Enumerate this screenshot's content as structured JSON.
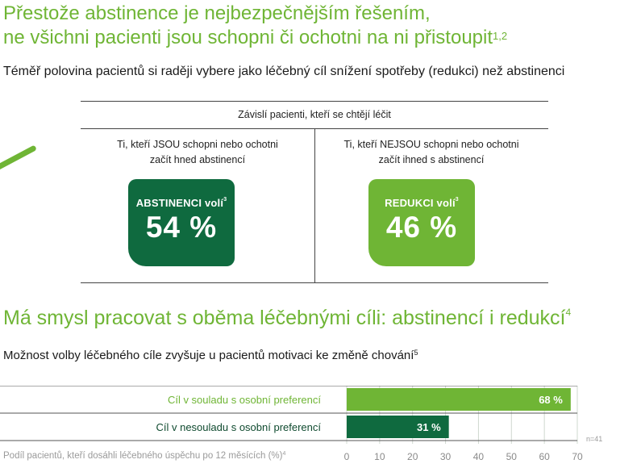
{
  "title": {
    "line1": "Přestože abstinence je nejbezpečnějším řešením,",
    "line2": "ne všichni pacienti jsou schopni či ochotni na ni přistoupit",
    "sup": "1,2"
  },
  "subtitle1": "Téměř polovina pacientů si raději vybere jako léčebný cíl snížení spotřeby (redukci) než abstinenci",
  "table": {
    "header": "Závislí pacienti, kteří se chtějí léčit",
    "left": {
      "line1": "Ti, kteří JSOU schopni nebo ochotni",
      "line2": "začít hned abstinencí",
      "box_label": "ABSTINENCI volí",
      "box_sup": "3",
      "box_value": "54 %"
    },
    "right": {
      "line1": "Ti, kteří NEJSOU schopni nebo ochotni",
      "line2": "začít ihned s abstinencí",
      "box_label": "REDUKCI volí",
      "box_sup": "3",
      "box_value": "46 %"
    }
  },
  "heading2": {
    "text": "Má smysl pracovat s oběma léčebnými cíli: abstinencí i redukcí",
    "sup": "4"
  },
  "subtitle2": {
    "text": "Možnost volby léčebného cíle zvyšuje u pacientů motivaci ke změně chování",
    "sup": "5"
  },
  "colors": {
    "light_green": "#6fb535",
    "dark_green": "#0f6a3f",
    "grid": "#cfd8cf"
  },
  "chart_data": {
    "type": "bar",
    "orientation": "horizontal",
    "categories": [
      "Cíl v souladu s osobní preferencí",
      "Cíl v nesouladu s osobní preferencí"
    ],
    "values": [
      68,
      31
    ],
    "value_labels": [
      "68 %",
      "31 %"
    ],
    "colors": [
      "#6fb535",
      "#0f6a3f"
    ],
    "xlabel": "Podíl pacientů, kteří dosáhli léčebného úspěchu po 12 měsících (%)",
    "xlabel_sup": "4",
    "xlim": [
      0,
      70
    ],
    "xticks": [
      0,
      10,
      20,
      30,
      40,
      50,
      60,
      70
    ],
    "note": "n=41",
    "grid": true
  }
}
